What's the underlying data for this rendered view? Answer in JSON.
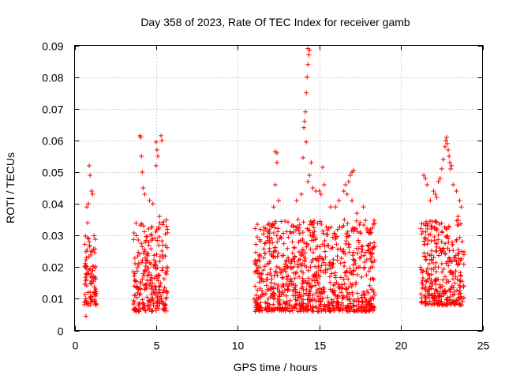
{
  "chart_data": {
    "type": "scatter",
    "title": "Day 358 of 2023, Rate Of TEC Index for receiver gamb",
    "xlabel": "GPS time / hours",
    "ylabel": "ROTI / TECUs",
    "xlim": [
      0,
      25
    ],
    "ylim": [
      0,
      0.09
    ],
    "x_ticks": [
      0,
      5,
      10,
      15,
      20,
      25
    ],
    "y_ticks": [
      0,
      0.01,
      0.02,
      0.03,
      0.04,
      0.05,
      0.06,
      0.07,
      0.08,
      0.09
    ],
    "x_tick_labels": [
      "0",
      "5",
      "10",
      "15",
      "20",
      "25"
    ],
    "y_tick_labels": [
      "0",
      "0.01",
      "0.02",
      "0.03",
      "0.04",
      "0.05",
      "0.06",
      "0.07",
      "0.08",
      "0.09"
    ],
    "grid": true,
    "marker": "+",
    "series_color": "#ff0000",
    "clusters": [
      {
        "x_range": [
          0.6,
          1.35
        ],
        "y_range": [
          0.008,
          0.03
        ]
      },
      {
        "x_range": [
          3.6,
          5.7
        ],
        "y_range": [
          0.006,
          0.035
        ]
      },
      {
        "x_range": [
          11.0,
          18.4
        ],
        "y_range": [
          0.006,
          0.035
        ]
      },
      {
        "x_range": [
          21.2,
          23.9
        ],
        "y_range": [
          0.008,
          0.035
        ]
      }
    ],
    "series": [
      {
        "name": "ROTI",
        "points": [
          [
            0.7,
            0.0045
          ],
          [
            0.75,
            0.039
          ],
          [
            0.8,
            0.034
          ],
          [
            0.85,
            0.04
          ],
          [
            0.9,
            0.052
          ],
          [
            0.95,
            0.049
          ],
          [
            1.05,
            0.044
          ],
          [
            1.1,
            0.043
          ],
          [
            0.9,
            0.028
          ],
          [
            1.2,
            0.012
          ],
          [
            4.0,
            0.0615
          ],
          [
            4.05,
            0.061
          ],
          [
            4.1,
            0.055
          ],
          [
            4.15,
            0.05
          ],
          [
            4.2,
            0.045
          ],
          [
            4.3,
            0.043
          ],
          [
            4.6,
            0.041
          ],
          [
            4.8,
            0.04
          ],
          [
            5.0,
            0.0595
          ],
          [
            5.05,
            0.057
          ],
          [
            5.1,
            0.055
          ],
          [
            5.3,
            0.0615
          ],
          [
            5.35,
            0.06
          ],
          [
            5.0,
            0.052
          ],
          [
            5.2,
            0.036
          ],
          [
            12.3,
            0.0565
          ],
          [
            12.4,
            0.056
          ],
          [
            12.4,
            0.053
          ],
          [
            12.3,
            0.046
          ],
          [
            12.5,
            0.041
          ],
          [
            12.2,
            0.039
          ],
          [
            13.6,
            0.041
          ],
          [
            13.9,
            0.043
          ],
          [
            14.0,
            0.0545
          ],
          [
            14.05,
            0.064
          ],
          [
            14.1,
            0.066
          ],
          [
            14.15,
            0.069
          ],
          [
            14.2,
            0.075
          ],
          [
            14.25,
            0.08
          ],
          [
            14.3,
            0.084
          ],
          [
            14.35,
            0.087
          ],
          [
            14.4,
            0.0885
          ],
          [
            14.3,
            0.089
          ],
          [
            14.2,
            0.0595
          ],
          [
            14.5,
            0.053
          ],
          [
            14.4,
            0.049
          ],
          [
            14.3,
            0.047
          ],
          [
            14.6,
            0.045
          ],
          [
            14.8,
            0.044
          ],
          [
            15.0,
            0.044
          ],
          [
            15.1,
            0.043
          ],
          [
            15.2,
            0.0515
          ],
          [
            15.3,
            0.046
          ],
          [
            15.7,
            0.039
          ],
          [
            16.0,
            0.039
          ],
          [
            16.2,
            0.041
          ],
          [
            16.5,
            0.044
          ],
          [
            16.6,
            0.046
          ],
          [
            16.7,
            0.043
          ],
          [
            16.8,
            0.047
          ],
          [
            16.9,
            0.049
          ],
          [
            17.0,
            0.05
          ],
          [
            17.1,
            0.0505
          ],
          [
            17.0,
            0.041
          ],
          [
            17.3,
            0.037
          ],
          [
            17.7,
            0.039
          ],
          [
            17.5,
            0.031
          ],
          [
            18.0,
            0.027
          ],
          [
            18.1,
            0.031
          ],
          [
            11.2,
            0.0335
          ],
          [
            21.4,
            0.049
          ],
          [
            21.5,
            0.048
          ],
          [
            21.6,
            0.046
          ],
          [
            21.8,
            0.041
          ],
          [
            22.0,
            0.044
          ],
          [
            22.1,
            0.043
          ],
          [
            22.2,
            0.042
          ],
          [
            22.3,
            0.047
          ],
          [
            22.4,
            0.048
          ],
          [
            22.5,
            0.051
          ],
          [
            22.6,
            0.054
          ],
          [
            22.7,
            0.058
          ],
          [
            22.75,
            0.06
          ],
          [
            22.8,
            0.061
          ],
          [
            22.85,
            0.059
          ],
          [
            22.9,
            0.057
          ],
          [
            22.95,
            0.055
          ],
          [
            23.0,
            0.053
          ],
          [
            23.05,
            0.051
          ],
          [
            23.1,
            0.052
          ],
          [
            23.2,
            0.046
          ],
          [
            23.4,
            0.044
          ],
          [
            23.6,
            0.041
          ],
          [
            23.7,
            0.039
          ],
          [
            23.5,
            0.036
          ]
        ]
      }
    ]
  }
}
